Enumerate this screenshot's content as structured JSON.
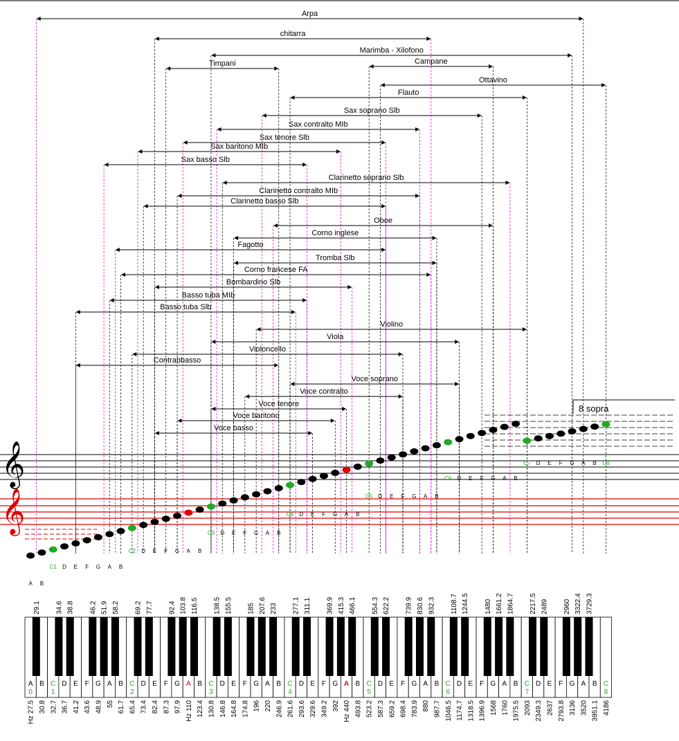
{
  "ranges": [
    {
      "label": "Arpa",
      "low": 29.1,
      "high": 3520
    },
    {
      "label": "chitarra",
      "low": 82.4,
      "high": 932.3
    },
    {
      "label": "Marimba - Xilofono",
      "low": 130.8,
      "high": 3136
    },
    {
      "label": "Timpani",
      "low": 87.3,
      "high": 246.9
    },
    {
      "label": "Campane",
      "low": 523.2,
      "high": 1568
    },
    {
      "label": "Ottavino",
      "low": 587.3,
      "high": 4186
    },
    {
      "label": "Flauto",
      "low": 261.6,
      "high": 2093
    },
    {
      "label": "Sax soprano Slb",
      "low": 207.6,
      "high": 1396.9
    },
    {
      "label": "Sax contralto MIb",
      "low": 138.5,
      "high": 830.6
    },
    {
      "label": "Sax tenore Slb",
      "low": 103.8,
      "high": 622.2
    },
    {
      "label": "Sax baritono MIb",
      "low": 69.2,
      "high": 415.3
    },
    {
      "label": "Sax basso Slb",
      "low": 51.9,
      "high": 311.1
    },
    {
      "label": "Clarinetto soprano Slb",
      "low": 146.8,
      "high": 1864.7
    },
    {
      "label": "Clarinetto contralto MIb",
      "low": 97.9,
      "high": 830.6
    },
    {
      "label": "Clarinetto basso Slb",
      "low": 73.4,
      "high": 622.2
    },
    {
      "label": "Oboe",
      "low": 233,
      "high": 1568
    },
    {
      "label": "Corno inglese",
      "low": 164.8,
      "high": 987.7
    },
    {
      "label": "Fagotto",
      "low": 58.2,
      "high": 622.2
    },
    {
      "label": "Tromba Slb",
      "low": 164.8,
      "high": 987.7
    },
    {
      "label": "Corno francese FA",
      "low": 61.7,
      "high": 932.3
    },
    {
      "label": "Bombardino Slb",
      "low": 82.4,
      "high": 466.1
    },
    {
      "label": "Basso tuba MIb",
      "low": 55,
      "high": 311.1
    },
    {
      "label": "Basso tuba Slb",
      "low": 41.2,
      "high": 277.1
    },
    {
      "label": "Violino",
      "low": 196,
      "high": 2093
    },
    {
      "label": "Viola",
      "low": 130.8,
      "high": 1174.7
    },
    {
      "label": "Violoncello",
      "low": 65.4,
      "high": 698.4
    },
    {
      "label": "Contrabbasso",
      "low": 41.2,
      "high": 246.9
    },
    {
      "label": "Voce soprano",
      "low": 261.6,
      "high": 1174.7
    },
    {
      "label": "Voce contralto",
      "low": 174.8,
      "high": 698.4
    },
    {
      "label": "Voce tenore",
      "low": 130.8,
      "high": 440
    },
    {
      "label": "Voce baritono",
      "low": 98,
      "high": 392
    },
    {
      "label": "Voce basso",
      "low": 82.4,
      "high": 329.6
    }
  ],
  "white_keys": [
    {
      "note": "A",
      "octave": "0",
      "hz": "Hz 27.5"
    },
    {
      "note": "B",
      "octave": "",
      "hz": "30.8"
    },
    {
      "note": "C",
      "octave": "1",
      "hz": "32.7"
    },
    {
      "note": "D",
      "octave": "",
      "hz": "36.7"
    },
    {
      "note": "E",
      "octave": "",
      "hz": "41.2"
    },
    {
      "note": "F",
      "octave": "",
      "hz": "43.6"
    },
    {
      "note": "G",
      "octave": "",
      "hz": "48.9"
    },
    {
      "note": "A",
      "octave": "",
      "hz": "55"
    },
    {
      "note": "B",
      "octave": "",
      "hz": "61.7"
    },
    {
      "note": "C",
      "octave": "2",
      "hz": "65.4"
    },
    {
      "note": "D",
      "octave": "",
      "hz": "73.4"
    },
    {
      "note": "E",
      "octave": "",
      "hz": "82.4"
    },
    {
      "note": "F",
      "octave": "",
      "hz": "87.3"
    },
    {
      "note": "G",
      "octave": "",
      "hz": "97.9"
    },
    {
      "note": "A",
      "octave": "",
      "hz": "Hz 110"
    },
    {
      "note": "B",
      "octave": "",
      "hz": "123.4"
    },
    {
      "note": "C",
      "octave": "3",
      "hz": "130.8"
    },
    {
      "note": "D",
      "octave": "",
      "hz": "146.8"
    },
    {
      "note": "E",
      "octave": "",
      "hz": "164.8"
    },
    {
      "note": "F",
      "octave": "",
      "hz": "174.8"
    },
    {
      "note": "G",
      "octave": "",
      "hz": "196"
    },
    {
      "note": "A",
      "octave": "",
      "hz": "220"
    },
    {
      "note": "B",
      "octave": "",
      "hz": "246.9"
    },
    {
      "note": "C",
      "octave": "4",
      "hz": "261.6"
    },
    {
      "note": "D",
      "octave": "",
      "hz": "293.6"
    },
    {
      "note": "E",
      "octave": "",
      "hz": "329.6"
    },
    {
      "note": "F",
      "octave": "",
      "hz": "349.2"
    },
    {
      "note": "G",
      "octave": "",
      "hz": "392"
    },
    {
      "note": "A",
      "octave": "",
      "hz": "Hz 440"
    },
    {
      "note": "B",
      "octave": "",
      "hz": "493.8"
    },
    {
      "note": "C",
      "octave": "5",
      "hz": "523.2"
    },
    {
      "note": "D",
      "octave": "",
      "hz": "587.3"
    },
    {
      "note": "E",
      "octave": "",
      "hz": "659.2"
    },
    {
      "note": "F",
      "octave": "",
      "hz": "698.4"
    },
    {
      "note": "G",
      "octave": "",
      "hz": "783.9"
    },
    {
      "note": "A",
      "octave": "",
      "hz": "880"
    },
    {
      "note": "B",
      "octave": "",
      "hz": "987.7"
    },
    {
      "note": "C",
      "octave": "6",
      "hz": "1046.5"
    },
    {
      "note": "D",
      "octave": "",
      "hz": "1174.7"
    },
    {
      "note": "E",
      "octave": "",
      "hz": "1318.5"
    },
    {
      "note": "F",
      "octave": "",
      "hz": "1396.9"
    },
    {
      "note": "G",
      "octave": "",
      "hz": "1568"
    },
    {
      "note": "A",
      "octave": "",
      "hz": "1760"
    },
    {
      "note": "B",
      "octave": "",
      "hz": "1975.5"
    },
    {
      "note": "C",
      "octave": "7",
      "hz": "2093"
    },
    {
      "note": "D",
      "octave": "",
      "hz": "2349.3"
    },
    {
      "note": "E",
      "octave": "",
      "hz": "2637"
    },
    {
      "note": "F",
      "octave": "",
      "hz": "2793.8"
    },
    {
      "note": "G",
      "octave": "",
      "hz": "3136"
    },
    {
      "note": "A",
      "octave": "",
      "hz": "3520"
    },
    {
      "note": "B",
      "octave": "",
      "hz": "3951.1"
    },
    {
      "note": "C",
      "octave": "8",
      "hz": "4186"
    }
  ],
  "black_keys": [
    {
      "after": 0,
      "hz": "29.1"
    },
    {
      "after": 2,
      "hz": "34.6"
    },
    {
      "after": 3,
      "hz": "38.8"
    },
    {
      "after": 5,
      "hz": "46.2"
    },
    {
      "after": 6,
      "hz": "51.9"
    },
    {
      "after": 7,
      "hz": "58.2"
    },
    {
      "after": 9,
      "hz": "69.2"
    },
    {
      "after": 10,
      "hz": "77.7"
    },
    {
      "after": 12,
      "hz": "92.4"
    },
    {
      "after": 13,
      "hz": "103.8"
    },
    {
      "after": 14,
      "hz": "116.5"
    },
    {
      "after": 16,
      "hz": "138.5"
    },
    {
      "after": 17,
      "hz": "155.5"
    },
    {
      "after": 19,
      "hz": "185"
    },
    {
      "after": 20,
      "hz": "207.6"
    },
    {
      "after": 21,
      "hz": "233"
    },
    {
      "after": 23,
      "hz": "277.1"
    },
    {
      "after": 24,
      "hz": "311.1"
    },
    {
      "after": 26,
      "hz": "369.9"
    },
    {
      "after": 27,
      "hz": "415.3"
    },
    {
      "after": 28,
      "hz": "466.1"
    },
    {
      "after": 30,
      "hz": "554.3"
    },
    {
      "after": 31,
      "hz": "622.2"
    },
    {
      "after": 33,
      "hz": "739.9"
    },
    {
      "after": 34,
      "hz": "830.6"
    },
    {
      "after": 35,
      "hz": "932.3"
    },
    {
      "after": 37,
      "hz": "1108.7"
    },
    {
      "after": 38,
      "hz": "1244.5"
    },
    {
      "after": 40,
      "hz": "1480"
    },
    {
      "after": 41,
      "hz": "1661.2"
    },
    {
      "after": 42,
      "hz": "1864.7"
    },
    {
      "after": 44,
      "hz": "2217.5"
    },
    {
      "after": 45,
      "hz": "2489"
    },
    {
      "after": 47,
      "hz": "2960"
    },
    {
      "after": 48,
      "hz": "3322.4"
    },
    {
      "after": 49,
      "hz": "3729.3"
    }
  ],
  "octave_label_letters": [
    "D",
    "E",
    "F",
    "G",
    "A",
    "B"
  ],
  "ottava_label": "8 sopra",
  "colors": {
    "octave_c": "#22aa22",
    "a440": "#dd0000",
    "bass_staff": "#dd0000",
    "guide_white": "#000000",
    "guide_black": "#cc00cc"
  }
}
